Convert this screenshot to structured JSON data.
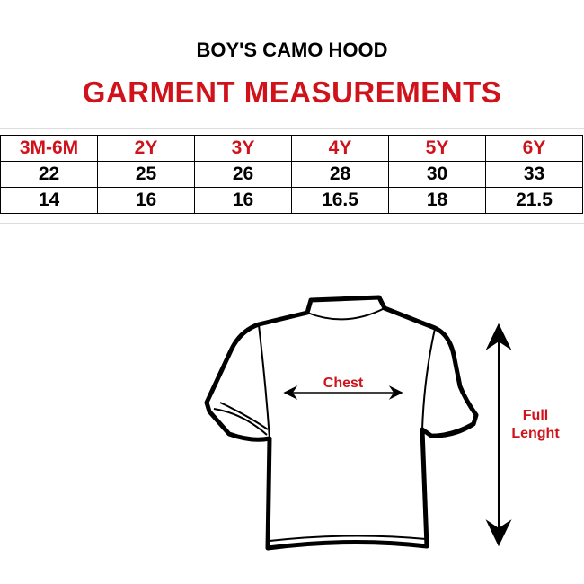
{
  "title": "BOY'S CAMO HOOD",
  "subtitle": "GARMENT MEASUREMENTS",
  "table": {
    "sizes": [
      "3M-6M",
      "2Y",
      "3Y",
      "4Y",
      "5Y",
      "6Y"
    ],
    "rows": [
      [
        "22",
        "25",
        "26",
        "28",
        "30",
        "33"
      ],
      [
        "14",
        "16",
        "16",
        "16.5",
        "18",
        "21.5"
      ]
    ]
  },
  "diagram": {
    "chest_label": "Chest",
    "length_label_1": "Full",
    "length_label_2": "Lenght"
  },
  "colors": {
    "accent": "#d0121b",
    "text": "#000000"
  }
}
